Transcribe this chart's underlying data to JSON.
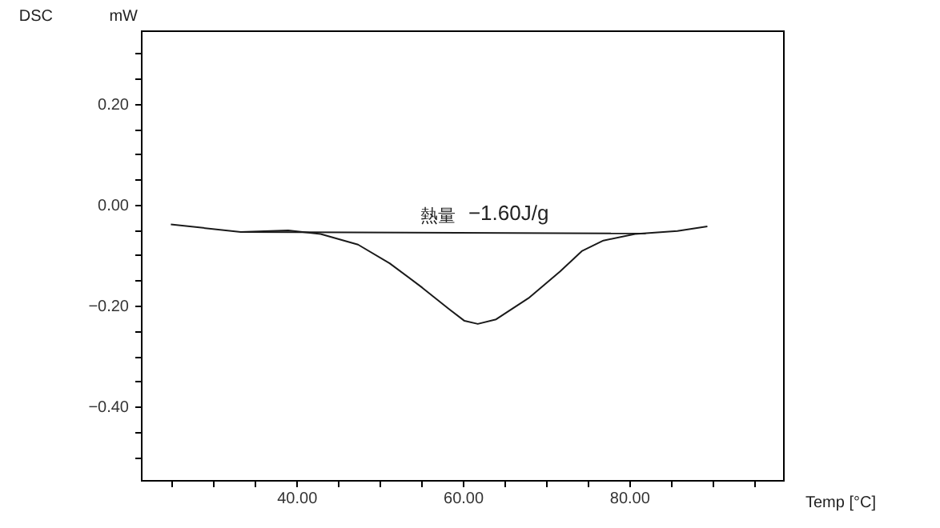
{
  "chart_data": {
    "type": "line",
    "title": "DSC",
    "ylabel": "mW",
    "xlabel": "Temp [°C]",
    "series": [
      {
        "type": "line",
        "color": "#1a1a1a",
        "x": [
          24.9,
          33.3,
          39.0,
          42.9,
          47.4,
          51.2,
          55.1,
          58.3,
          60.2,
          61.8,
          64.0,
          67.9,
          71.7,
          74.3,
          76.9,
          80.7,
          85.8,
          89.4
        ],
        "values": [
          -0.039,
          -0.054,
          -0.051,
          -0.058,
          -0.079,
          -0.116,
          -0.164,
          -0.206,
          -0.23,
          -0.236,
          -0.227,
          -0.185,
          -0.132,
          -0.092,
          -0.071,
          -0.058,
          -0.052,
          -0.043
        ]
      },
      {
        "type": "line",
        "color": "#1a1a1a",
        "x": [
          33.3,
          82.0
        ],
        "values": [
          -0.054,
          -0.057
        ]
      }
    ],
    "annotations": [
      {
        "text": "熱量",
        "x": 57,
        "y": -0.04
      },
      {
        "text": "−1.60J/g",
        "x": 65.5,
        "y": -0.04
      }
    ],
    "xlim": [
      21.3,
      98.5
    ],
    "ylim": [
      -0.545,
      0.345
    ],
    "xticks": [
      {
        "value": 25,
        "label": null
      },
      {
        "value": 30,
        "label": null
      },
      {
        "value": 35,
        "label": null
      },
      {
        "value": 40,
        "label": "40.00"
      },
      {
        "value": 45,
        "label": null
      },
      {
        "value": 50,
        "label": null
      },
      {
        "value": 55,
        "label": null
      },
      {
        "value": 60,
        "label": "60.00"
      },
      {
        "value": 65,
        "label": null
      },
      {
        "value": 70,
        "label": null
      },
      {
        "value": 75,
        "label": null
      },
      {
        "value": 80,
        "label": "80.00"
      },
      {
        "value": 85,
        "label": null
      },
      {
        "value": 90,
        "label": null
      },
      {
        "value": 95,
        "label": null
      }
    ],
    "yticks": [
      {
        "value": -0.5,
        "label": null
      },
      {
        "value": -0.45,
        "label": null
      },
      {
        "value": -0.4,
        "label": "−0.40"
      },
      {
        "value": -0.35,
        "label": null
      },
      {
        "value": -0.3,
        "label": null
      },
      {
        "value": -0.25,
        "label": null
      },
      {
        "value": -0.2,
        "label": "−0.20"
      },
      {
        "value": -0.15,
        "label": null
      },
      {
        "value": -0.1,
        "label": null
      },
      {
        "value": -0.05,
        "label": null
      },
      {
        "value": 0,
        "label": "0.00"
      },
      {
        "value": 0.05,
        "label": null
      },
      {
        "value": 0.1,
        "label": null
      },
      {
        "value": 0.15,
        "label": null
      },
      {
        "value": 0.2,
        "label": "0.20"
      },
      {
        "value": 0.25,
        "label": null
      },
      {
        "value": 0.3,
        "label": null
      }
    ],
    "grid": false
  }
}
